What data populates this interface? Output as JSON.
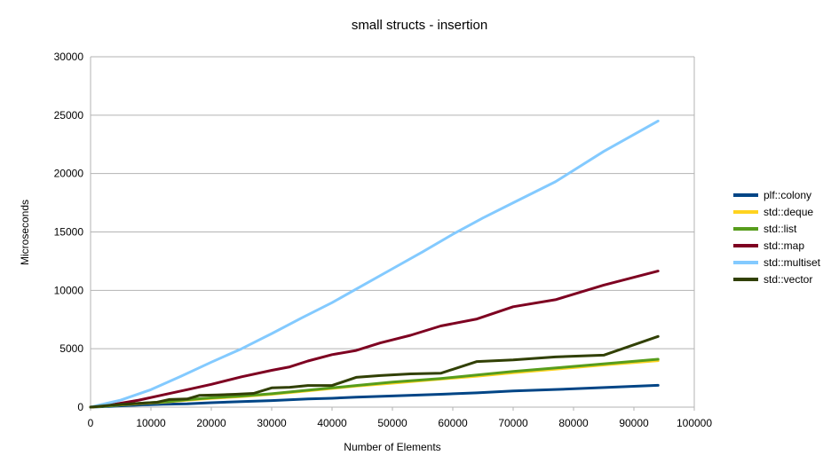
{
  "chart_data": {
    "type": "line",
    "title": "small structs - insertion",
    "xlabel": "Number of Elements",
    "ylabel": "Microseconds",
    "xlim": [
      0,
      100000
    ],
    "ylim": [
      0,
      30000
    ],
    "xticks": [
      0,
      10000,
      20000,
      30000,
      40000,
      50000,
      60000,
      70000,
      80000,
      90000,
      100000
    ],
    "yticks": [
      0,
      5000,
      10000,
      15000,
      20000,
      25000,
      30000
    ],
    "grid": "horizontal",
    "legend_position": "right",
    "series": [
      {
        "name": "plf::colony",
        "color": "#004586",
        "points": [
          [
            0,
            0
          ],
          [
            4000,
            80
          ],
          [
            8000,
            180
          ],
          [
            12000,
            250
          ],
          [
            16000,
            280
          ],
          [
            20000,
            380
          ],
          [
            25000,
            470
          ],
          [
            30000,
            560
          ],
          [
            36000,
            700
          ],
          [
            40000,
            760
          ],
          [
            44000,
            860
          ],
          [
            50000,
            960
          ],
          [
            58000,
            1100
          ],
          [
            64000,
            1220
          ],
          [
            70000,
            1380
          ],
          [
            78000,
            1530
          ],
          [
            86000,
            1700
          ],
          [
            94000,
            1870
          ]
        ]
      },
      {
        "name": "std::deque",
        "color": "#ffd320",
        "points": [
          [
            0,
            0
          ],
          [
            4000,
            150
          ],
          [
            8000,
            300
          ],
          [
            12000,
            420
          ],
          [
            16000,
            600
          ],
          [
            20000,
            750
          ],
          [
            25000,
            900
          ],
          [
            30000,
            1100
          ],
          [
            36000,
            1400
          ],
          [
            40000,
            1600
          ],
          [
            44000,
            1800
          ],
          [
            50000,
            2050
          ],
          [
            58000,
            2400
          ],
          [
            64000,
            2650
          ],
          [
            70000,
            2950
          ],
          [
            78000,
            3300
          ],
          [
            86000,
            3650
          ],
          [
            94000,
            3980
          ]
        ]
      },
      {
        "name": "std::list",
        "color": "#579d1c",
        "points": [
          [
            0,
            0
          ],
          [
            4000,
            160
          ],
          [
            8000,
            320
          ],
          [
            12000,
            450
          ],
          [
            16000,
            640
          ],
          [
            20000,
            800
          ],
          [
            25000,
            950
          ],
          [
            30000,
            1150
          ],
          [
            36000,
            1450
          ],
          [
            40000,
            1650
          ],
          [
            44000,
            1850
          ],
          [
            50000,
            2150
          ],
          [
            58000,
            2450
          ],
          [
            64000,
            2750
          ],
          [
            70000,
            3050
          ],
          [
            78000,
            3400
          ],
          [
            86000,
            3750
          ],
          [
            94000,
            4100
          ]
        ]
      },
      {
        "name": "std::map",
        "color": "#7e0021",
        "points": [
          [
            0,
            0
          ],
          [
            4000,
            250
          ],
          [
            8000,
            600
          ],
          [
            12000,
            1050
          ],
          [
            16000,
            1500
          ],
          [
            20000,
            1950
          ],
          [
            25000,
            2600
          ],
          [
            30000,
            3150
          ],
          [
            33000,
            3450
          ],
          [
            36000,
            3950
          ],
          [
            40000,
            4500
          ],
          [
            44000,
            4850
          ],
          [
            48000,
            5500
          ],
          [
            53000,
            6150
          ],
          [
            58000,
            6950
          ],
          [
            64000,
            7550
          ],
          [
            70000,
            8600
          ],
          [
            77000,
            9200
          ],
          [
            85000,
            10450
          ],
          [
            94000,
            11650
          ]
        ]
      },
      {
        "name": "std::multiset",
        "color": "#83caff",
        "points": [
          [
            0,
            0
          ],
          [
            5000,
            600
          ],
          [
            10000,
            1500
          ],
          [
            15000,
            2650
          ],
          [
            20000,
            3850
          ],
          [
            25000,
            5000
          ],
          [
            30000,
            6300
          ],
          [
            35000,
            7650
          ],
          [
            40000,
            8950
          ],
          [
            45000,
            10400
          ],
          [
            50000,
            11850
          ],
          [
            55000,
            13300
          ],
          [
            60000,
            14800
          ],
          [
            65000,
            16200
          ],
          [
            70000,
            17500
          ],
          [
            77000,
            19300
          ],
          [
            85000,
            21900
          ],
          [
            94000,
            24500
          ]
        ]
      },
      {
        "name": "std::vector",
        "color": "#314004",
        "points": [
          [
            0,
            0
          ],
          [
            4000,
            200
          ],
          [
            8000,
            330
          ],
          [
            11000,
            420
          ],
          [
            13000,
            650
          ],
          [
            16000,
            700
          ],
          [
            18000,
            1000
          ],
          [
            21000,
            1050
          ],
          [
            24000,
            1100
          ],
          [
            27000,
            1180
          ],
          [
            30000,
            1650
          ],
          [
            33000,
            1700
          ],
          [
            36000,
            1850
          ],
          [
            40000,
            1850
          ],
          [
            44000,
            2550
          ],
          [
            48000,
            2700
          ],
          [
            53000,
            2850
          ],
          [
            58000,
            2900
          ],
          [
            64000,
            3900
          ],
          [
            70000,
            4050
          ],
          [
            77000,
            4300
          ],
          [
            85000,
            4450
          ],
          [
            94000,
            6050
          ]
        ]
      }
    ]
  }
}
